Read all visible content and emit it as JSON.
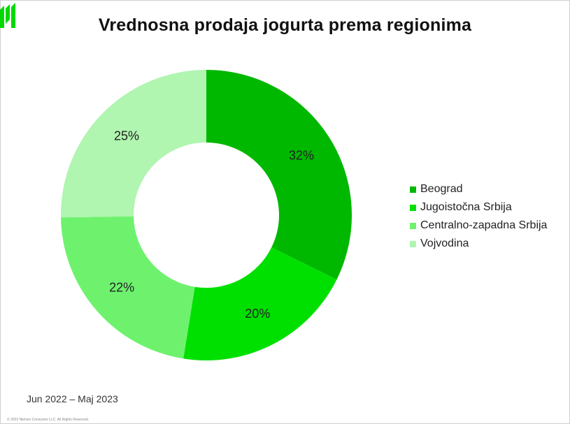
{
  "title": "Vrednosna prodaja jogurta prema regionima",
  "period": "Jun 2022 – Maj 2023",
  "copyright": "© 2023 Nielsen Consumer LLC. All Rights Reserved.",
  "chart_data": {
    "type": "pie",
    "subtype": "donut",
    "title": "Vrednosna prodaja jogurta prema regionima",
    "legend_position": "right",
    "categories": [
      "Beograd",
      "Jugoistočna Srbija",
      "Centralno-zapadna Srbija",
      "Vojvodina"
    ],
    "values": [
      32,
      20,
      22,
      25
    ],
    "labels": [
      "32%",
      "20%",
      "22%",
      "25%"
    ],
    "colors": [
      "#00b800",
      "#00e000",
      "#6ef26e",
      "#b0f5b0"
    ]
  },
  "logo": {
    "color": "#00d900",
    "icon": "brand-logo-icon"
  }
}
